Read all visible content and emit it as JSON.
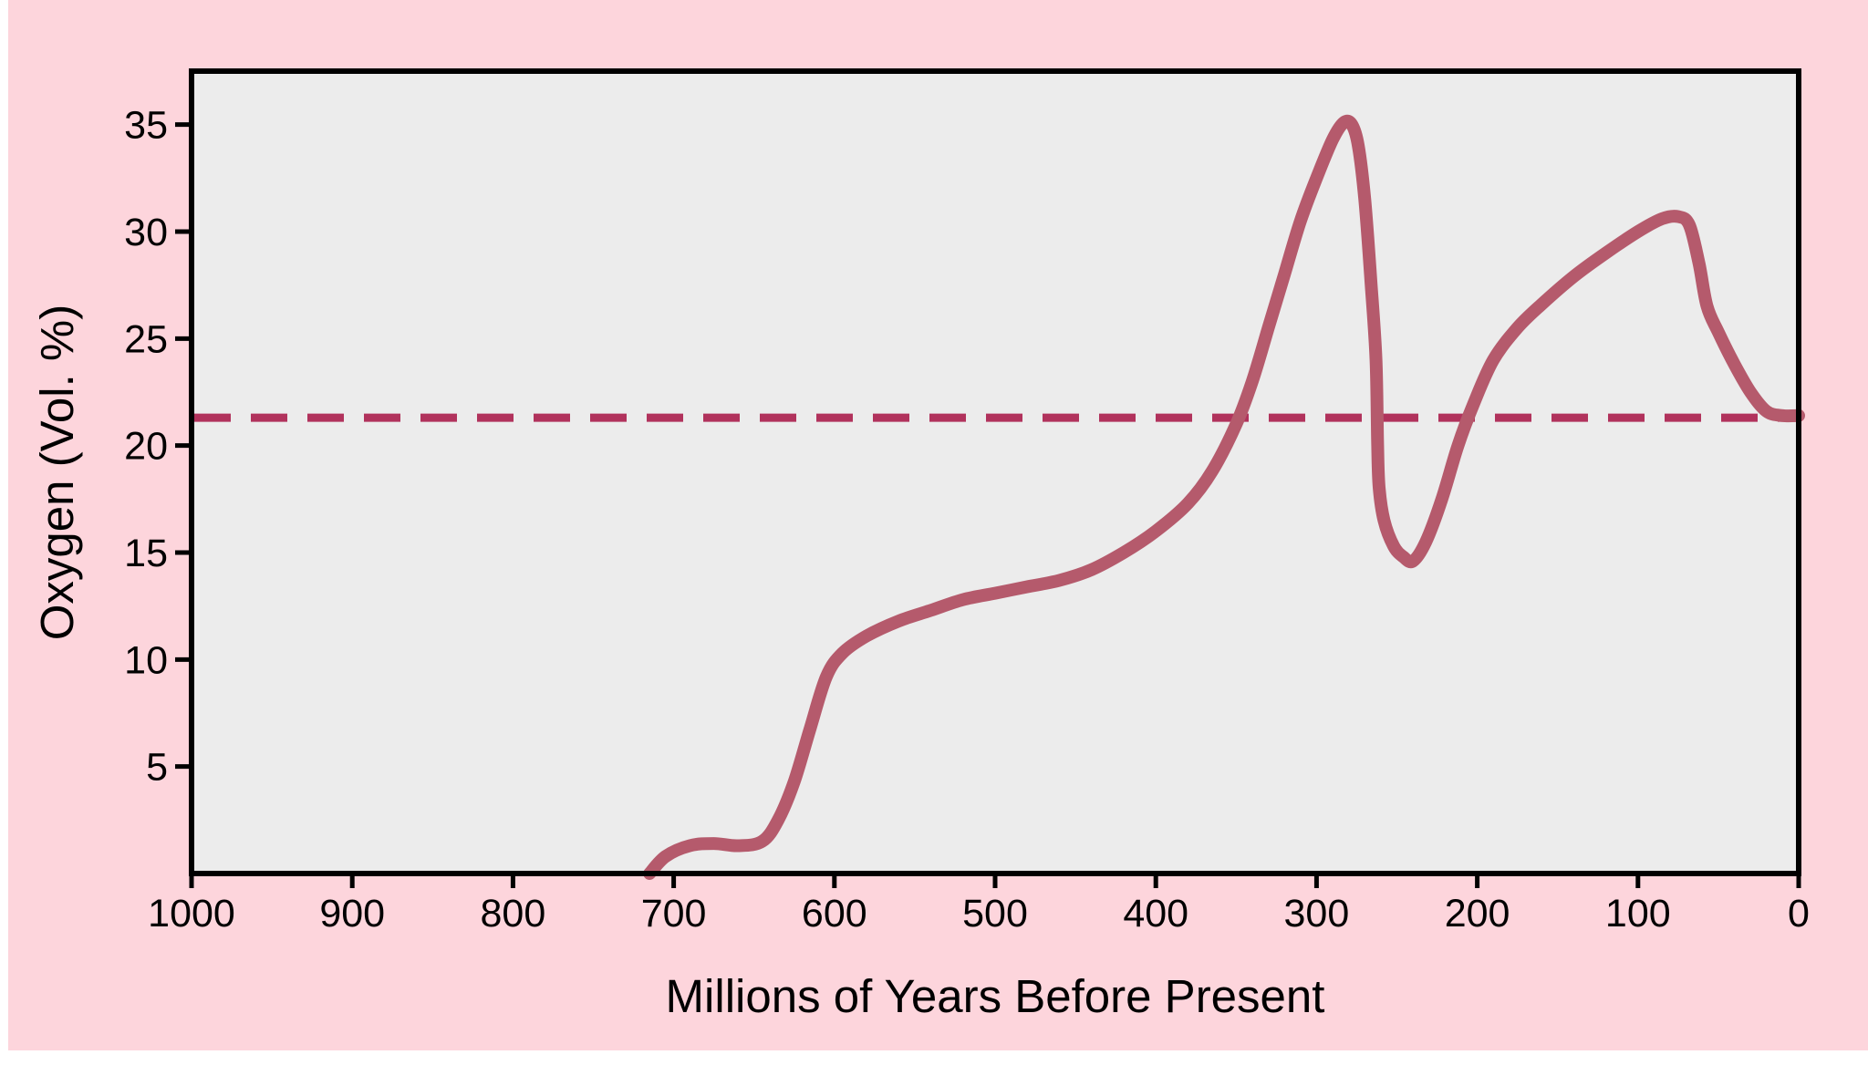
{
  "chart_data": {
    "type": "line",
    "title": "",
    "xlabel": "Millions of Years Before Present",
    "ylabel": "Oxygen (Vol. %)",
    "xlim": [
      1000,
      0
    ],
    "x_reversed": true,
    "ylim": [
      0,
      37.5
    ],
    "x_ticks": [
      1000,
      900,
      800,
      700,
      600,
      500,
      400,
      300,
      200,
      100,
      0
    ],
    "y_ticks": [
      5,
      10,
      15,
      20,
      25,
      30,
      35
    ],
    "grid": false,
    "legend": "none",
    "colors": {
      "background": "#fdd5dc",
      "plot_area": "#ececec",
      "line": "#b55a6c",
      "reference_line": "#b1325c",
      "axes": "#000000"
    },
    "series": [
      {
        "points": [
          [
            715,
            0.0
          ],
          [
            705,
            0.8
          ],
          [
            690,
            1.3
          ],
          [
            675,
            1.4
          ],
          [
            660,
            1.3
          ],
          [
            645,
            1.5
          ],
          [
            635,
            2.5
          ],
          [
            625,
            4.3
          ],
          [
            615,
            6.8
          ],
          [
            605,
            9.2
          ],
          [
            595,
            10.3
          ],
          [
            580,
            11.1
          ],
          [
            560,
            11.8
          ],
          [
            540,
            12.3
          ],
          [
            520,
            12.8
          ],
          [
            500,
            13.1
          ],
          [
            480,
            13.4
          ],
          [
            460,
            13.7
          ],
          [
            440,
            14.2
          ],
          [
            420,
            15.0
          ],
          [
            400,
            16.0
          ],
          [
            380,
            17.3
          ],
          [
            365,
            18.8
          ],
          [
            350,
            21.0
          ],
          [
            340,
            23.0
          ],
          [
            330,
            25.5
          ],
          [
            320,
            28.0
          ],
          [
            310,
            30.5
          ],
          [
            300,
            32.5
          ],
          [
            290,
            34.3
          ],
          [
            283,
            35.1
          ],
          [
            278,
            35.0
          ],
          [
            274,
            34.0
          ],
          [
            270,
            31.5
          ],
          [
            266,
            27.5
          ],
          [
            263,
            24.0
          ],
          [
            262,
            20.0
          ],
          [
            261,
            18.0
          ],
          [
            258,
            16.5
          ],
          [
            252,
            15.3
          ],
          [
            246,
            14.8
          ],
          [
            240,
            14.6
          ],
          [
            232,
            15.5
          ],
          [
            222,
            17.5
          ],
          [
            212,
            20.0
          ],
          [
            202,
            22.0
          ],
          [
            190,
            24.0
          ],
          [
            175,
            25.5
          ],
          [
            160,
            26.6
          ],
          [
            140,
            27.9
          ],
          [
            120,
            29.0
          ],
          [
            100,
            30.0
          ],
          [
            85,
            30.6
          ],
          [
            75,
            30.7
          ],
          [
            68,
            30.3
          ],
          [
            62,
            28.5
          ],
          [
            57,
            26.5
          ],
          [
            50,
            25.3
          ],
          [
            40,
            23.8
          ],
          [
            30,
            22.5
          ],
          [
            20,
            21.6
          ],
          [
            10,
            21.4
          ],
          [
            0,
            21.4
          ]
        ]
      }
    ],
    "reference_lines": [
      {
        "axis": "y",
        "value": 21.3,
        "style": "dashed"
      }
    ]
  }
}
